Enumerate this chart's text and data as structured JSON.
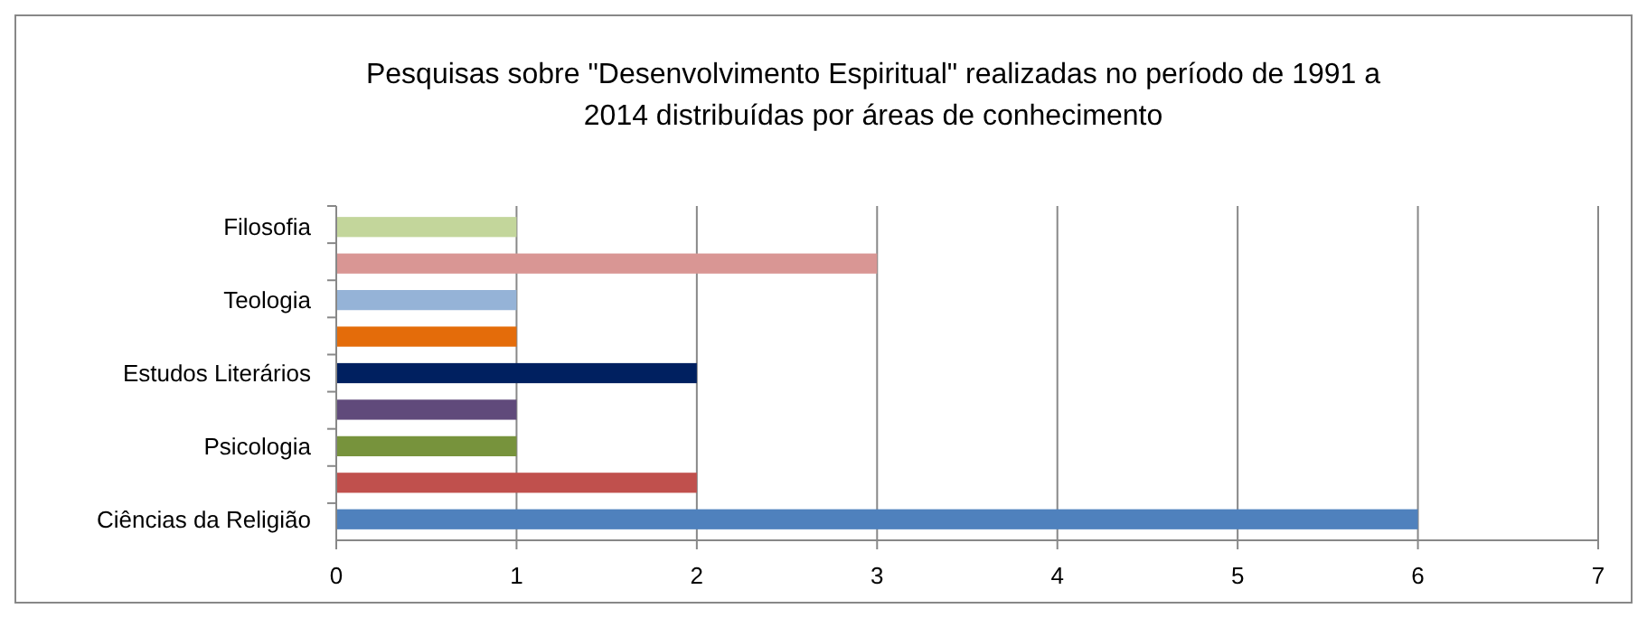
{
  "chart_data": {
    "type": "bar",
    "orientation": "horizontal",
    "title": "Pesquisas sobre \"Desenvolvimento Espiritual\" realizadas no período de 1991 a\n2014 distribuídas por áreas de conhecimento",
    "categories": [
      "Filosofia",
      null,
      "Teologia",
      null,
      "Estudos Literários",
      null,
      "Psicologia",
      null,
      "Ciências da Religião"
    ],
    "values": [
      1,
      3,
      1,
      1,
      2,
      1,
      1,
      2,
      6
    ],
    "colors": [
      "#c3d69b",
      "#d99694",
      "#95b3d7",
      "#e46c0a",
      "#002060",
      "#604a7b",
      "#77933c",
      "#c0504d",
      "#4f81bd"
    ],
    "xlim": [
      0,
      7
    ],
    "xticks": [
      0,
      1,
      2,
      3,
      4,
      5,
      6,
      7
    ],
    "grid": "x"
  }
}
